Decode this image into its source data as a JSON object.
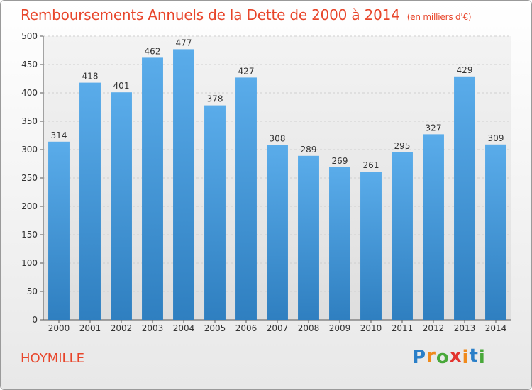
{
  "title": "Remboursements Annuels de la Dette de 2000 à 2014",
  "unit": "(en milliers d'€)",
  "commune": "HOYMILLE",
  "logo": {
    "text": [
      "P",
      "r",
      "o",
      "x",
      "i",
      "t",
      "i"
    ],
    "colors": [
      "#2a7fc8",
      "#f08a1c",
      "#49a83a",
      "#e3342f",
      "#f08a1c",
      "#2a7fc8",
      "#49a83a"
    ]
  },
  "colors": {
    "bar_top": "#5aacea",
    "bar_bottom": "#2f7fc0",
    "axis": "#555555",
    "grid": "#cfcfcf",
    "title": "#e8452a"
  },
  "chart_data": {
    "type": "bar",
    "title": "Remboursements Annuels de la Dette de 2000 à 2014",
    "xlabel": "",
    "ylabel": "",
    "ylim": [
      0,
      500
    ],
    "yticks": [
      0,
      50,
      100,
      150,
      200,
      250,
      300,
      350,
      400,
      450,
      500
    ],
    "categories": [
      "2000",
      "2001",
      "2002",
      "2003",
      "2004",
      "2005",
      "2006",
      "2007",
      "2008",
      "2009",
      "2010",
      "2011",
      "2012",
      "2013",
      "2014"
    ],
    "values": [
      314,
      418,
      401,
      462,
      477,
      378,
      427,
      308,
      289,
      269,
      261,
      295,
      327,
      429,
      309
    ]
  }
}
